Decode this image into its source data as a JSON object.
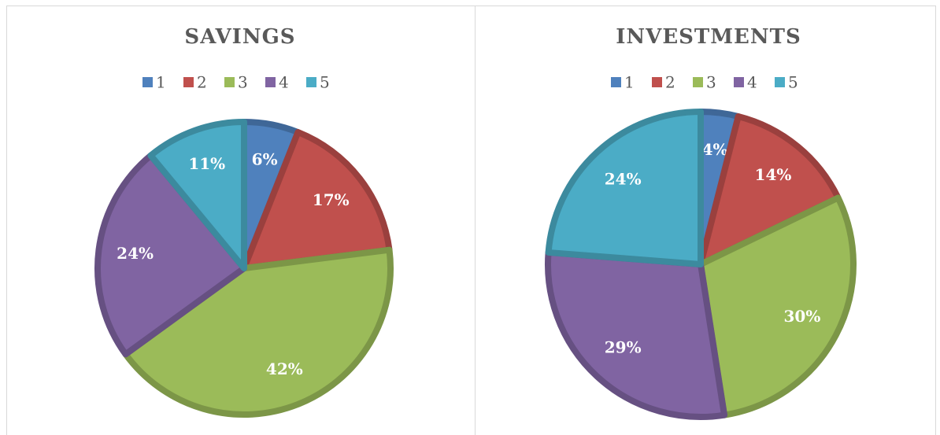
{
  "chart_data": [
    {
      "type": "pie",
      "title": "SAVINGS",
      "categories": [
        "1",
        "2",
        "3",
        "4",
        "5"
      ],
      "values": [
        6,
        17,
        42,
        24,
        11
      ],
      "value_labels": [
        "6%",
        "17%",
        "42%",
        "24%",
        "11%"
      ],
      "colors": [
        "#4f81bd",
        "#c0504d",
        "#9bbb59",
        "#8064a2",
        "#4bacc6"
      ]
    },
    {
      "type": "pie",
      "title": "INVESTMENTS",
      "categories": [
        "1",
        "2",
        "3",
        "4",
        "5"
      ],
      "values": [
        4,
        14,
        30,
        29,
        24
      ],
      "value_labels": [
        "4%",
        "14%",
        "30%",
        "29%",
        "24%"
      ],
      "colors": [
        "#4f81bd",
        "#c0504d",
        "#9bbb59",
        "#8064a2",
        "#4bacc6"
      ]
    }
  ]
}
